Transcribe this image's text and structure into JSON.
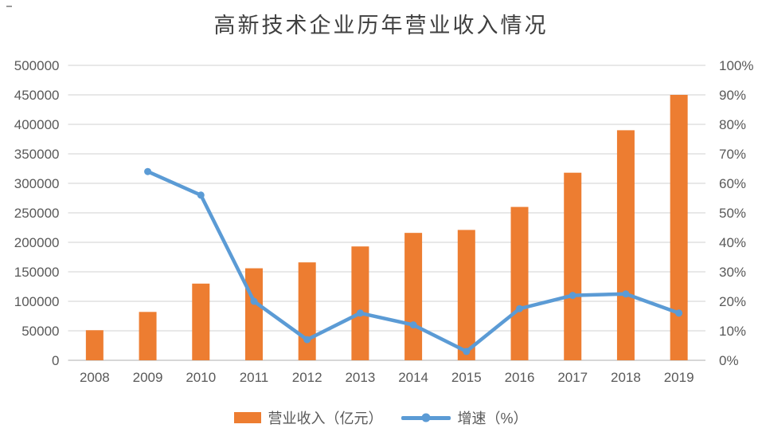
{
  "page_title": "高新技术企业历年营业收入情况",
  "colors": {
    "bar": "#ED7D31",
    "line": "#5B9BD5",
    "grid": "#D9D9D9",
    "axis_line": "#BFBFBF",
    "tick_text": "#595959",
    "title_text": "#3f3f3f"
  },
  "chart_data": {
    "type": "combo-bar-line",
    "title": "高新技术企业历年营业收入情况",
    "categories": [
      "2008",
      "2009",
      "2010",
      "2011",
      "2012",
      "2013",
      "2014",
      "2015",
      "2016",
      "2017",
      "2018",
      "2019"
    ],
    "series": [
      {
        "name": "营业收入（亿元）",
        "type": "bar",
        "axis": "left",
        "color": "#ED7D31",
        "values": [
          51000,
          82000,
          130000,
          156000,
          166000,
          193000,
          216000,
          221000,
          260000,
          318000,
          390000,
          450000
        ]
      },
      {
        "name": "增速（%）",
        "type": "line",
        "axis": "right",
        "color": "#5B9BD5",
        "values": [
          null,
          64,
          56,
          20,
          7,
          16,
          12,
          3,
          17.5,
          22,
          22.5,
          16
        ]
      }
    ],
    "left_axis": {
      "min": 0,
      "max": 500000,
      "step": 50000,
      "labels": [
        "500000",
        "450000",
        "400000",
        "350000",
        "300000",
        "250000",
        "200000",
        "150000",
        "100000",
        "50000",
        "0"
      ]
    },
    "right_axis": {
      "min": 0,
      "max": 100,
      "step": 10,
      "labels": [
        "100%",
        "90%",
        "80%",
        "70%",
        "60%",
        "50%",
        "40%",
        "30%",
        "20%",
        "10%",
        "0%"
      ]
    },
    "grid": true,
    "legend_position": "bottom"
  },
  "legend": {
    "bar_label": "营业收入（亿元）",
    "line_label": "增速（%）"
  }
}
